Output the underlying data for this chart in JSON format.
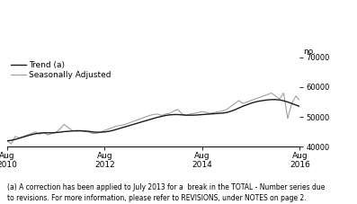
{
  "ylim": [
    40000,
    70000
  ],
  "yticks": [
    40000,
    50000,
    60000,
    70000
  ],
  "background_color": "#ffffff",
  "trend_color": "#1a1a1a",
  "seasonal_color": "#999999",
  "legend_labels": [
    "Trend (a)",
    "Seasonally Adjusted"
  ],
  "footnote": "(a) A correction has been applied to July 2013 for a  break in the TOTAL - Number series due\nto revisions. For more information, please refer to REVISIONS, under NOTES on page 2.",
  "ylabel": "no.",
  "x_tick_positions": [
    0,
    24,
    48,
    72
  ],
  "x_tick_labels": [
    "Aug\n2010",
    "Aug\n2012",
    "Aug\n2014",
    "Aug\n2016"
  ],
  "n_points": 73,
  "trend_data": [
    42000,
    42200,
    42500,
    42900,
    43300,
    43700,
    44100,
    44400,
    44600,
    44700,
    44700,
    44700,
    44800,
    44900,
    45100,
    45200,
    45300,
    45400,
    45400,
    45300,
    45200,
    45000,
    44900,
    44900,
    45000,
    45200,
    45500,
    45900,
    46300,
    46700,
    47100,
    47500,
    47900,
    48300,
    48700,
    49100,
    49500,
    49900,
    50200,
    50500,
    50700,
    50800,
    50800,
    50700,
    50600,
    50600,
    50600,
    50700,
    50800,
    50900,
    51000,
    51100,
    51200,
    51300,
    51500,
    51900,
    52400,
    53000,
    53600,
    54100,
    54600,
    55000,
    55300,
    55500,
    55700,
    55800,
    55800,
    55700,
    55400,
    55000,
    54500,
    54000,
    53500
  ],
  "seasonal_data": [
    42000,
    41000,
    43500,
    43000,
    43500,
    44000,
    44500,
    45000,
    44200,
    44800,
    44000,
    44500,
    44800,
    46000,
    47500,
    46500,
    45500,
    45200,
    45300,
    45200,
    45000,
    44500,
    44500,
    45000,
    45500,
    46000,
    46500,
    47000,
    47200,
    47500,
    48000,
    48500,
    49000,
    49500,
    50000,
    50500,
    50800,
    51000,
    50500,
    51000,
    51200,
    52000,
    52500,
    51000,
    50500,
    51000,
    51200,
    51500,
    51800,
    51500,
    51200,
    51500,
    51800,
    52000,
    52500,
    53500,
    54500,
    55500,
    54500,
    55000,
    55500,
    56000,
    56500,
    57000,
    57500,
    58000,
    57000,
    56000,
    58000,
    49500,
    54500,
    57000,
    55500
  ]
}
